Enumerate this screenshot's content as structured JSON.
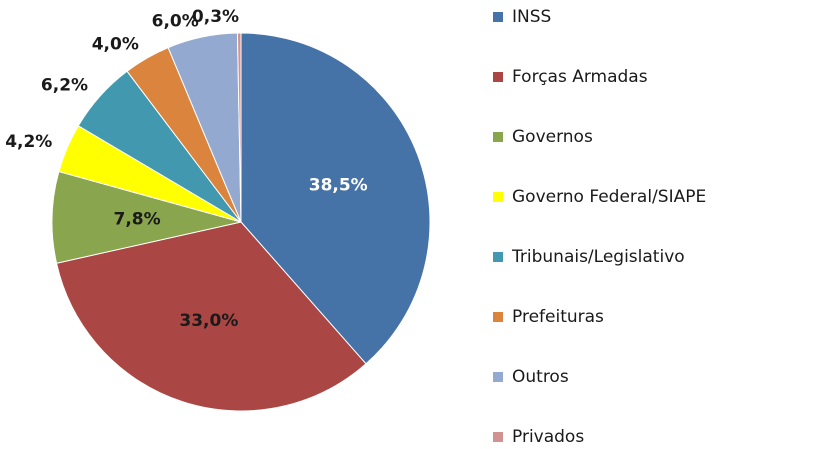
{
  "chart_data": {
    "type": "pie",
    "categories": [
      "INSS",
      "Forças Armadas",
      "Governos",
      "Governo Federal/SIAPE",
      "Tribunais/Legislativo",
      "Prefeituras",
      "Outros",
      "Privados"
    ],
    "values": [
      38.5,
      33.0,
      7.8,
      4.2,
      6.2,
      4.0,
      6.0,
      0.3
    ],
    "value_labels": [
      "38,5%",
      "33,0%",
      "7,8%",
      "4,2%",
      "6,2%",
      "4,0%",
      "6,0%",
      "0,3%"
    ],
    "colors": [
      "#4572a7",
      "#aa4643",
      "#89a54e",
      "#ffff00",
      "#4198af",
      "#db843d",
      "#93a9cf",
      "#d19392"
    ],
    "legend": "right"
  }
}
